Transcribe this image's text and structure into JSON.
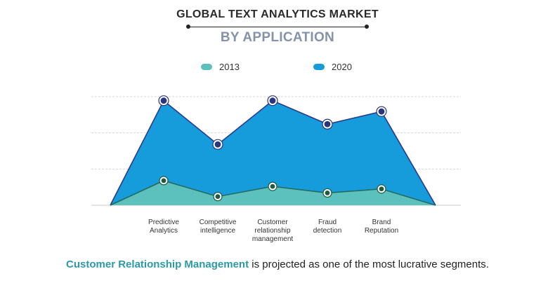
{
  "header": {
    "title": "GLOBAL TEXT ANALYTICS MARKET",
    "subtitle": "BY APPLICATION"
  },
  "colors": {
    "series_2013": "#5cc1bd",
    "series_2020": "#169bdb",
    "outline_2013": "#226b5e",
    "outline_2020": "#2a3a8c",
    "marker_2013": "#1d5a3e",
    "marker_2020": "#283580",
    "highlight_text": "#2b9aa8"
  },
  "chart_data": {
    "type": "area",
    "categories": [
      [
        "Predictive",
        "Analytics"
      ],
      [
        "Competitive",
        "intelligence"
      ],
      [
        "Customer",
        "relationship",
        "management"
      ],
      [
        "Fraud",
        "detection"
      ],
      [
        "Brand",
        "Reputation"
      ]
    ],
    "series": [
      {
        "name": "2013",
        "values": [
          0.68,
          0.24,
          0.52,
          0.34,
          0.45
        ]
      },
      {
        "name": "2020",
        "values": [
          2.89,
          1.68,
          2.89,
          2.24,
          2.59
        ]
      }
    ],
    "ylim": [
      0,
      3
    ],
    "grid": true,
    "legend": "top-center",
    "title": "GLOBAL TEXT ANALYTICS MARKET",
    "subtitle": "BY APPLICATION",
    "xlabel": "",
    "ylabel": ""
  },
  "footer": {
    "highlight": "Customer Relationship Management",
    "rest": " is projected as one of the most lucrative segments."
  }
}
